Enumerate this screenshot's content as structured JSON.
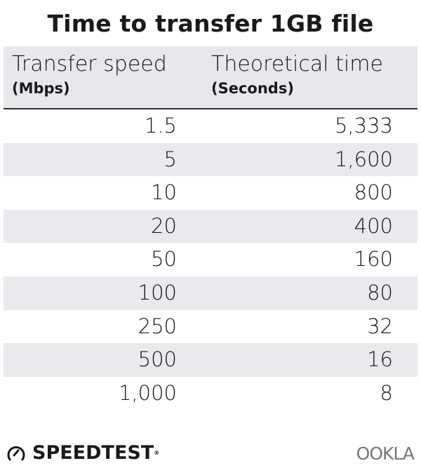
{
  "chart_data": {
    "type": "table",
    "title": "Time to transfer 1GB file",
    "columns": [
      {
        "label": "Transfer speed",
        "unit": "(Mbps)"
      },
      {
        "label": "Theoretical time",
        "unit": "(Seconds)"
      }
    ],
    "rows": [
      [
        "1.5",
        "5,333"
      ],
      [
        "5",
        "1,600"
      ],
      [
        "10",
        "800"
      ],
      [
        "20",
        "400"
      ],
      [
        "50",
        "160"
      ],
      [
        "100",
        "80"
      ],
      [
        "250",
        "32"
      ],
      [
        "500",
        "16"
      ],
      [
        "1,000",
        "8"
      ]
    ],
    "colors": {
      "header_bg": "#e8e7ec",
      "stripe_bg": "#e9e9ee",
      "rule": "#333333"
    }
  },
  "footer": {
    "brand": "SPEEDTEST",
    "brand_icon": "speedometer-icon",
    "partner": "OOKLA"
  }
}
